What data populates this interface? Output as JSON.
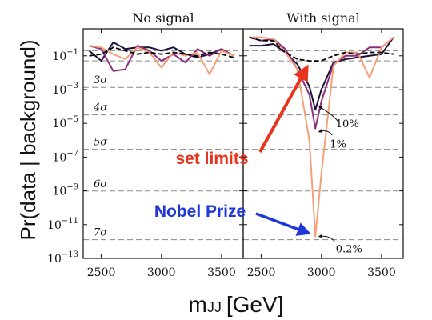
{
  "chart_data": {
    "type": "line",
    "ylabel": "Pr(data | background)",
    "xlabel": "m",
    "xlabel_subscript": "JJ",
    "xlabel_unit": "[GeV]",
    "ylog": true,
    "ylim_log10": [
      -13,
      0.6
    ],
    "xlim": [
      2350,
      3680
    ],
    "xticks": [
      2500,
      3000,
      3500
    ],
    "xtick_labels": [
      "2500",
      "3000",
      "3500"
    ],
    "yticks_log10": [
      -1,
      -3,
      -5,
      -7,
      -9,
      -11,
      -13
    ],
    "ytick_labels": [
      {
        "base": "10",
        "exp": "−1"
      },
      {
        "base": "10",
        "exp": "−3"
      },
      {
        "base": "10",
        "exp": "−5"
      },
      {
        "base": "10",
        "exp": "−7"
      },
      {
        "base": "10",
        "exp": "−9"
      },
      {
        "base": "10",
        "exp": "−11"
      },
      {
        "base": "10",
        "exp": "−13"
      }
    ],
    "sigma_lines": [
      {
        "label": "3σ",
        "log10": -2.87
      },
      {
        "label": "4σ",
        "log10": -4.5
      },
      {
        "label": "5σ",
        "log10": -6.54
      },
      {
        "label": "6σ",
        "log10": -9.01
      },
      {
        "label": "7σ",
        "log10": -11.89
      }
    ],
    "extra_dashed_log10": [
      -0.7,
      -1.3
    ],
    "panels": [
      {
        "title": "No signal",
        "series": [
          {
            "color": "#1b1038",
            "x": [
              2400,
              2500,
              2600,
              2700,
              2800,
              2900,
              3000,
              3100,
              3200,
              3300,
              3400,
              3500,
              3600
            ],
            "log10": [
              -0.7,
              -1.3,
              -0.2,
              -0.6,
              -0.5,
              -0.5,
              -0.7,
              -0.5,
              -0.9,
              -1.1,
              -0.9,
              -0.6,
              -1.0
            ]
          },
          {
            "color": "#8b2d7e",
            "x": [
              2400,
              2500,
              2600,
              2700,
              2800,
              2900,
              3000,
              3100,
              3200,
              3300,
              3400,
              3500,
              3600
            ],
            "log10": [
              -0.4,
              -0.6,
              -1.9,
              -1.8,
              -0.4,
              -0.7,
              -1.3,
              -0.9,
              -1.4,
              -0.6,
              -1.0,
              -0.6,
              -1.0
            ]
          },
          {
            "color": "#f4a07a",
            "x": [
              2400,
              2500,
              2600,
              2700,
              2800,
              2900,
              3000,
              3100,
              3200,
              3300,
              3400,
              3500,
              3600
            ],
            "log10": [
              -0.4,
              -0.5,
              -0.9,
              -1.2,
              -0.5,
              -0.8,
              -1.7,
              -0.8,
              -1.0,
              -0.8,
              -2.1,
              -0.7,
              -1.0
            ]
          },
          {
            "color": "#000000",
            "dashed": true,
            "x": [
              2400,
              2500,
              2600,
              2700,
              2800,
              2900,
              3000,
              3100,
              3200,
              3300,
              3400,
              3500,
              3600
            ],
            "log10": [
              -1.0,
              -0.9,
              -0.5,
              -0.7,
              -0.9,
              -0.8,
              -0.9,
              -0.8,
              -0.9,
              -1.0,
              -0.8,
              -0.9,
              -1.1
            ]
          }
        ]
      },
      {
        "title": "With signal",
        "series": [
          {
            "color": "#1b1038",
            "x": [
              2400,
              2500,
              2600,
              2700,
              2800,
              2900,
              2950,
              3000,
              3100,
              3200,
              3300,
              3400,
              3500,
              3600
            ],
            "log10": [
              -0.4,
              -0.4,
              -0.3,
              -0.8,
              -1.5,
              -2.8,
              -4.2,
              -3.0,
              -1.4,
              -1.2,
              -1.1,
              -1.0,
              -0.9,
              0.1
            ]
          },
          {
            "color": "#8b2d7e",
            "x": [
              2400,
              2500,
              2600,
              2700,
              2800,
              2900,
              2950,
              3000,
              3100,
              3200,
              3300,
              3400,
              3500,
              3600
            ],
            "log10": [
              0.1,
              -0.1,
              0.0,
              -0.6,
              -1.8,
              -3.3,
              -5.3,
              -3.7,
              -1.5,
              -1.0,
              -1.0,
              -0.5,
              -0.5,
              0.1
            ]
          },
          {
            "color": "#f4a07a",
            "x": [
              2400,
              2500,
              2600,
              2700,
              2800,
              2900,
              2950,
              3000,
              3100,
              3200,
              3300,
              3400,
              3500,
              3600
            ],
            "log10": [
              0.1,
              0.1,
              0.0,
              -0.8,
              -1.8,
              -6.0,
              -11.7,
              -8.0,
              -1.6,
              -0.8,
              -0.8,
              -2.3,
              -0.5,
              0.1
            ]
          },
          {
            "color": "#000000",
            "dashed": true,
            "x": [
              2400,
              2500,
              2600,
              2700,
              2800,
              2900,
              3000,
              3100,
              3200,
              3300,
              3400,
              3500,
              3600
            ],
            "log10": [
              0.1,
              -0.1,
              -0.1,
              -0.8,
              -1.2,
              -1.3,
              -1.3,
              -1.0,
              -0.8,
              -0.9,
              -0.8,
              -0.8,
              -0.9
            ]
          }
        ],
        "labels": [
          {
            "text": "10%",
            "x": 3120,
            "log10": -5.0
          },
          {
            "text": "1%",
            "x": 3070,
            "log10": -6.2
          },
          {
            "text": "0.2%",
            "x": 3120,
            "log10": -12.4
          }
        ],
        "label_arrows": [
          {
            "from_x": 3140,
            "from_log10": -4.9,
            "to_x": 2960,
            "to_log10": -4.0
          },
          {
            "from_x": 3090,
            "from_log10": -5.7,
            "to_x": 2960,
            "to_log10": -5.5
          },
          {
            "from_x": 3110,
            "from_log10": -12.0,
            "to_x": 2960,
            "to_log10": -11.7
          }
        ]
      }
    ],
    "annotations": [
      {
        "text": "set limits",
        "color": "#e8341c",
        "tip_x": 2900,
        "tip_log10": -1.3
      },
      {
        "text": "Nobel Prize",
        "color": "#1f36d8",
        "tip_x": 2920,
        "tip_log10": -11.6
      }
    ]
  }
}
